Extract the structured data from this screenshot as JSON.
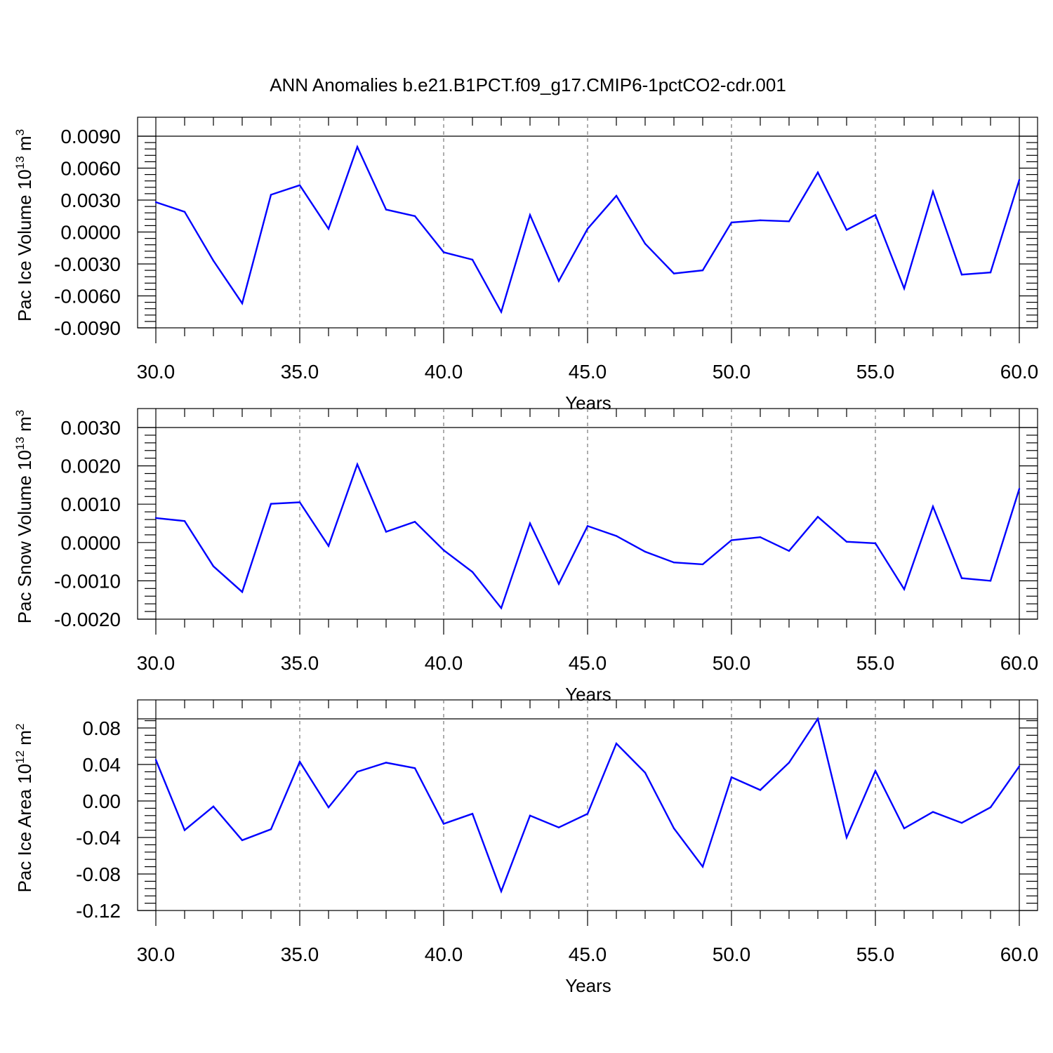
{
  "chart_data": {
    "title": "ANN Anomalies b.e21.B1PCT.f09_g17.CMIP6-1pctCO2-cdr.001",
    "panels": [
      {
        "type": "line",
        "xlabel": "Years",
        "ylabel_main": "Pac Ice Volume 10",
        "ylabel_sup1": "13",
        "ylabel_unit": " m",
        "ylabel_sup2": "3",
        "xlim": [
          30,
          60
        ],
        "ylim": [
          -0.009,
          0.009
        ],
        "xticks": [
          "30.0",
          "35.0",
          "40.0",
          "45.0",
          "50.0",
          "55.0",
          "60.0"
        ],
        "yticks": [
          "-0.0090",
          "-0.0060",
          "-0.0030",
          "0.0000",
          "0.0030",
          "0.0060",
          "0.0090"
        ],
        "grid": "vertical dashed at major x ticks",
        "color": "#0000ff",
        "x": [
          30,
          31,
          32,
          33,
          34,
          35,
          36,
          37,
          38,
          39,
          40,
          41,
          42,
          43,
          44,
          45,
          46,
          47,
          48,
          49,
          50,
          51,
          52,
          53,
          54,
          55,
          56,
          57,
          58,
          59,
          60
        ],
        "values": [
          0.0028,
          0.0019,
          -0.0027,
          -0.0067,
          0.0035,
          0.0044,
          0.0003,
          0.008,
          0.0021,
          0.0015,
          -0.0019,
          -0.0026,
          -0.0075,
          0.0016,
          -0.0046,
          0.0003,
          0.0034,
          -0.0011,
          -0.0039,
          -0.0036,
          0.0009,
          0.0011,
          0.001,
          0.0056,
          0.0002,
          0.0016,
          -0.0053,
          0.0038,
          -0.004,
          -0.0038,
          0.0049
        ]
      },
      {
        "type": "line",
        "xlabel": "Years",
        "ylabel_main": "Pac Snow Volume 10",
        "ylabel_sup1": "13",
        "ylabel_unit": " m",
        "ylabel_sup2": "3",
        "xlim": [
          30,
          60
        ],
        "ylim": [
          -0.002,
          0.003
        ],
        "xticks": [
          "30.0",
          "35.0",
          "40.0",
          "45.0",
          "50.0",
          "55.0",
          "60.0"
        ],
        "yticks": [
          "-0.0020",
          "-0.0010",
          "0.0000",
          "0.0010",
          "0.0020",
          "0.0030"
        ],
        "grid": "vertical dashed at major x ticks",
        "color": "#0000ff",
        "x": [
          30,
          31,
          32,
          33,
          34,
          35,
          36,
          37,
          38,
          39,
          40,
          41,
          42,
          43,
          44,
          45,
          46,
          47,
          48,
          49,
          50,
          51,
          52,
          53,
          54,
          55,
          56,
          57,
          58,
          59,
          60
        ],
        "values": [
          0.00064,
          0.00056,
          -0.00062,
          -0.00129,
          0.00101,
          0.00105,
          -9e-05,
          0.00204,
          0.00028,
          0.00054,
          -0.0002,
          -0.00077,
          -0.00171,
          0.0005,
          -0.00108,
          0.00043,
          0.00017,
          -0.00024,
          -0.00052,
          -0.00057,
          6e-05,
          0.00014,
          -0.00022,
          0.00067,
          2e-05,
          -2e-05,
          -0.00122,
          0.00094,
          -0.00093,
          -0.001,
          0.0014
        ]
      },
      {
        "type": "line",
        "xlabel": "Years",
        "ylabel_main": "Pac Ice Area 10",
        "ylabel_sup1": "12",
        "ylabel_unit": " m",
        "ylabel_sup2": "2",
        "xlim": [
          30,
          60
        ],
        "ylim": [
          -0.12,
          0.09
        ],
        "xticks": [
          "30.0",
          "35.0",
          "40.0",
          "45.0",
          "50.0",
          "55.0",
          "60.0"
        ],
        "yticks": [
          "-0.12",
          "-0.08",
          "-0.04",
          "0.00",
          "0.04",
          "0.08"
        ],
        "grid": "vertical dashed at major x ticks",
        "color": "#0000ff",
        "x": [
          30,
          31,
          32,
          33,
          34,
          35,
          36,
          37,
          38,
          39,
          40,
          41,
          42,
          43,
          44,
          45,
          46,
          47,
          48,
          49,
          50,
          51,
          52,
          53,
          54,
          55,
          56,
          57,
          58,
          59,
          60
        ],
        "values": [
          0.045,
          -0.032,
          -0.006,
          -0.043,
          -0.031,
          0.043,
          -0.007,
          0.032,
          0.042,
          0.036,
          -0.025,
          -0.014,
          -0.099,
          -0.016,
          -0.029,
          -0.014,
          0.063,
          0.031,
          -0.03,
          -0.072,
          0.026,
          0.012,
          0.042,
          0.09,
          -0.04,
          0.033,
          -0.03,
          -0.012,
          -0.024,
          -0.007,
          0.038
        ]
      }
    ]
  }
}
